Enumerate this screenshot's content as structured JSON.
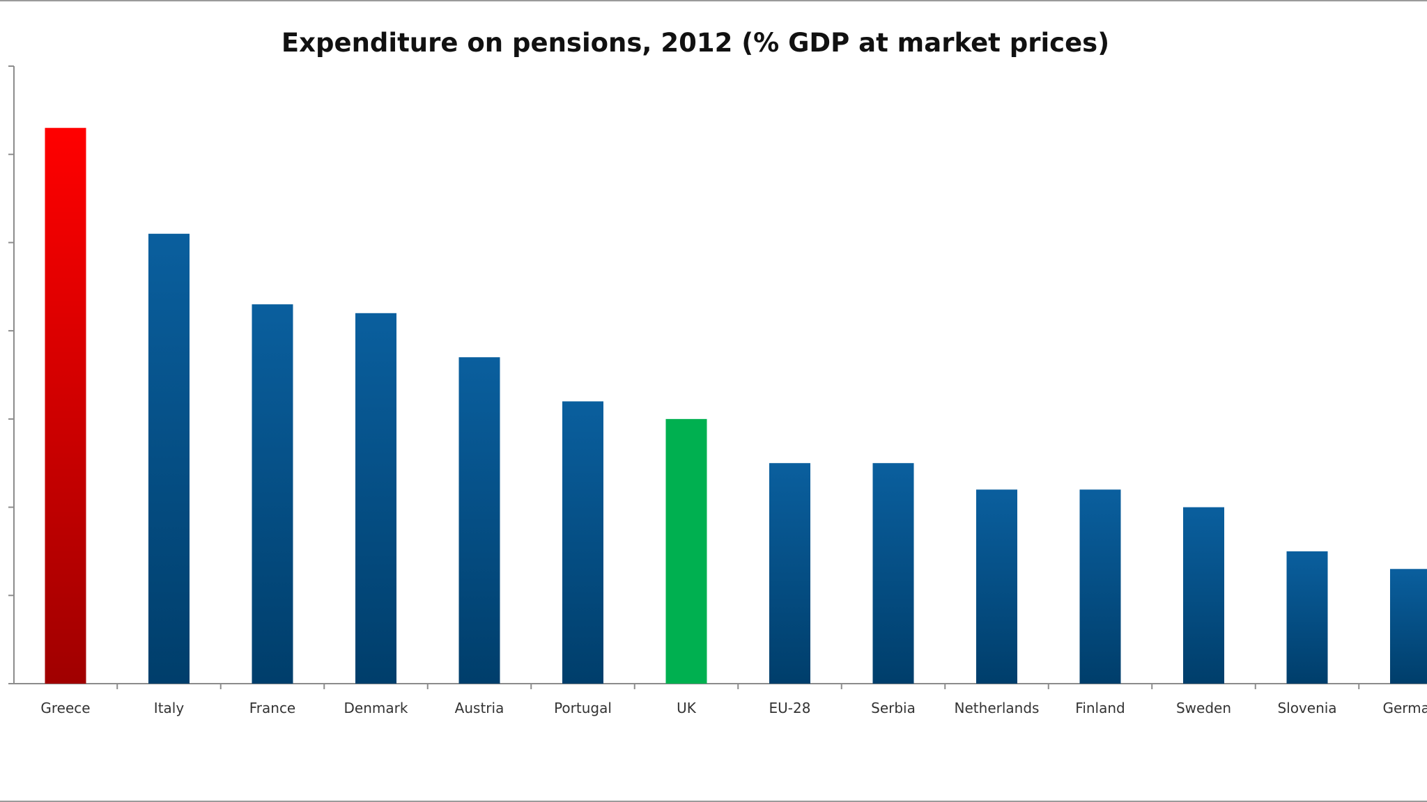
{
  "chart_data": {
    "type": "bar",
    "title": "Expenditure on pensions, 2012 (% GDP at market prices)",
    "xlabel": "",
    "ylabel": "",
    "categories": [
      "Greece",
      "Italy",
      "France",
      "Denmark",
      "Austria",
      "Portugal",
      "UK",
      "EU-28",
      "Serbia",
      "Netherlands",
      "Finland",
      "Sweden",
      "Slovenia",
      "Germany"
    ],
    "visible_category_labels": [
      "Greece",
      "Italy",
      "France",
      "Denmark",
      "Austria",
      "Portugal",
      "UK",
      "EU-28",
      "Serbia",
      "Netherlands",
      "Finland",
      "Sweden",
      "Slovenia",
      "German"
    ],
    "values_note_units": "tick intervals (tick labels not visible)",
    "values": [
      6.3,
      5.1,
      4.3,
      4.2,
      3.7,
      3.2,
      3.0,
      2.5,
      2.5,
      2.2,
      2.2,
      2.0,
      1.5,
      1.3
    ],
    "ylim": [
      0,
      7
    ],
    "yticks_count": 7,
    "grid": false,
    "legend": "none",
    "colors": {
      "default": [
        "#0a5f9e",
        "#003e6b"
      ],
      "Greece": [
        "#ff0000",
        "#a00000"
      ],
      "UK": [
        "#00b050",
        "#00b050"
      ]
    }
  }
}
